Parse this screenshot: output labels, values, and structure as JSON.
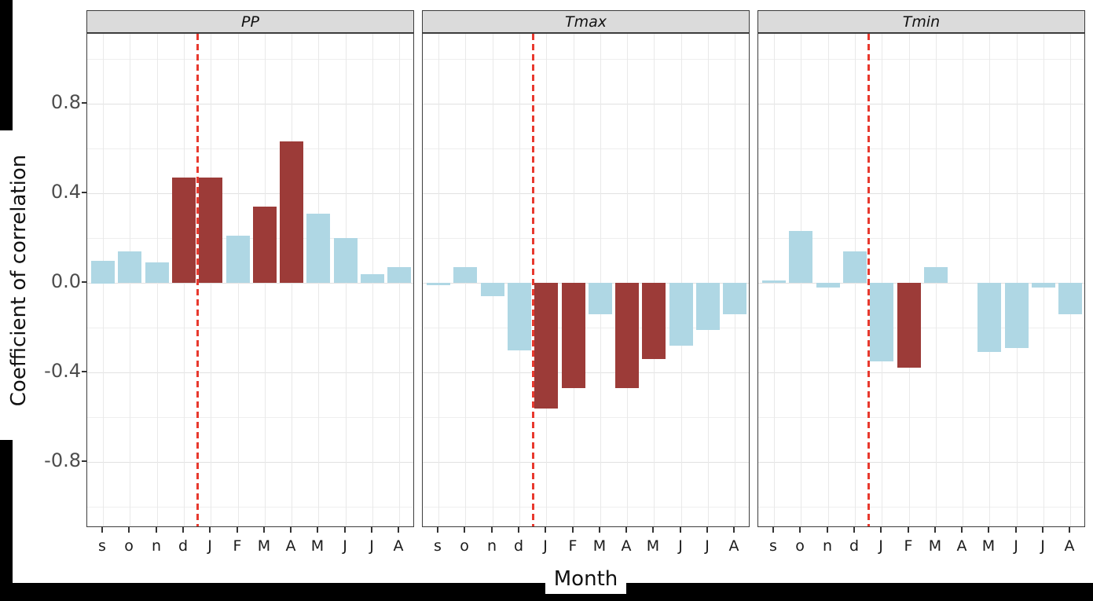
{
  "figure": {
    "ylabel": "Coefficient of correlation",
    "xlabel": "Month"
  },
  "chart_data": {
    "type": "bar",
    "title": "",
    "categories": [
      "s",
      "o",
      "n",
      "d",
      "J",
      "F",
      "M",
      "A",
      "M",
      "J",
      "J",
      "A"
    ],
    "facets": [
      {
        "label": "PP",
        "values": [
          0.1,
          0.14,
          0.09,
          0.47,
          0.47,
          0.21,
          0.34,
          0.63,
          0.31,
          0.2,
          0.04,
          0.07
        ],
        "significant": [
          false,
          false,
          false,
          true,
          true,
          false,
          true,
          true,
          false,
          false,
          false,
          false
        ]
      },
      {
        "label": "Tmax",
        "values": [
          -0.01,
          0.07,
          -0.06,
          -0.3,
          -0.56,
          -0.47,
          -0.14,
          -0.47,
          -0.34,
          -0.28,
          -0.21,
          -0.14
        ],
        "significant": [
          false,
          false,
          false,
          false,
          true,
          true,
          false,
          true,
          true,
          false,
          false,
          false
        ]
      },
      {
        "label": "Tmin",
        "values": [
          0.01,
          0.23,
          -0.02,
          0.14,
          -0.35,
          -0.38,
          0.07,
          0.0,
          -0.31,
          -0.29,
          -0.02,
          -0.14
        ],
        "significant": [
          false,
          false,
          false,
          false,
          false,
          true,
          false,
          false,
          false,
          false,
          false,
          false
        ]
      }
    ],
    "xlabel": "Month",
    "ylabel": "Coefficient of correlation",
    "ytick_labels": [
      "0.8",
      "0.4",
      "0.0",
      "-0.4",
      "-0.8"
    ],
    "ytick_values": [
      0.8,
      0.4,
      0.0,
      -0.4,
      -0.8
    ],
    "ylim": [
      -1.1,
      1.11
    ],
    "grid": {
      "horizontal_step": 0.2,
      "vertical": "at each category center"
    },
    "reference_line": {
      "orientation": "vertical",
      "style": "dashed",
      "between": [
        "d",
        "J"
      ],
      "color": "#E8392E"
    },
    "colors": {
      "bar_nonsignificant": "#AFD7E4",
      "bar_significant": "#9C3B38",
      "reference_line": "#E8392E",
      "strip_background": "#DBDBDB",
      "panel_border": "#3E3E3E"
    },
    "legend_position": "none"
  }
}
